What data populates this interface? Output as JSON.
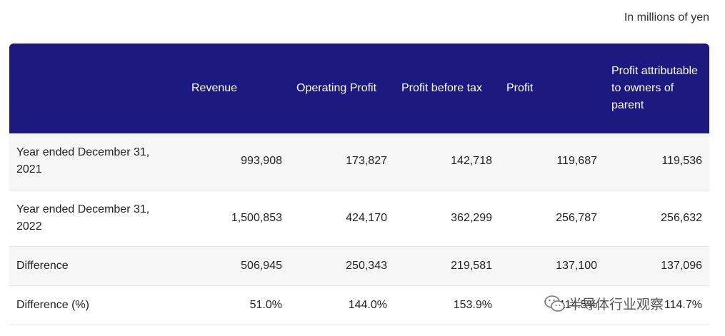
{
  "unit_note": "In millions of yen",
  "table": {
    "headers": [
      "",
      "Revenue",
      "Operating Profit",
      "Profit before tax",
      "Profit",
      "Profit attributable to owners of parent"
    ],
    "rows": [
      [
        "Year ended December 31, 2021",
        "993,908",
        "173,827",
        "142,718",
        "119,687",
        "119,536"
      ],
      [
        "Year ended December 31, 2022",
        "1,500,853",
        "424,170",
        "362,299",
        "256,787",
        "256,632"
      ],
      [
        "Difference",
        "506,945",
        "250,343",
        "219,581",
        "137,100",
        "137,096"
      ],
      [
        "Difference (%)",
        "51.0%",
        "144.0%",
        "153.9%",
        "114.5%",
        "114.7%"
      ]
    ]
  },
  "colors": {
    "header_bg": "#1c1a80",
    "header_text": "#ffffff",
    "row_alt_bg": "#f6f6f6"
  },
  "watermark": {
    "icon": "wechat-icon",
    "text": "半导体行业观察"
  }
}
